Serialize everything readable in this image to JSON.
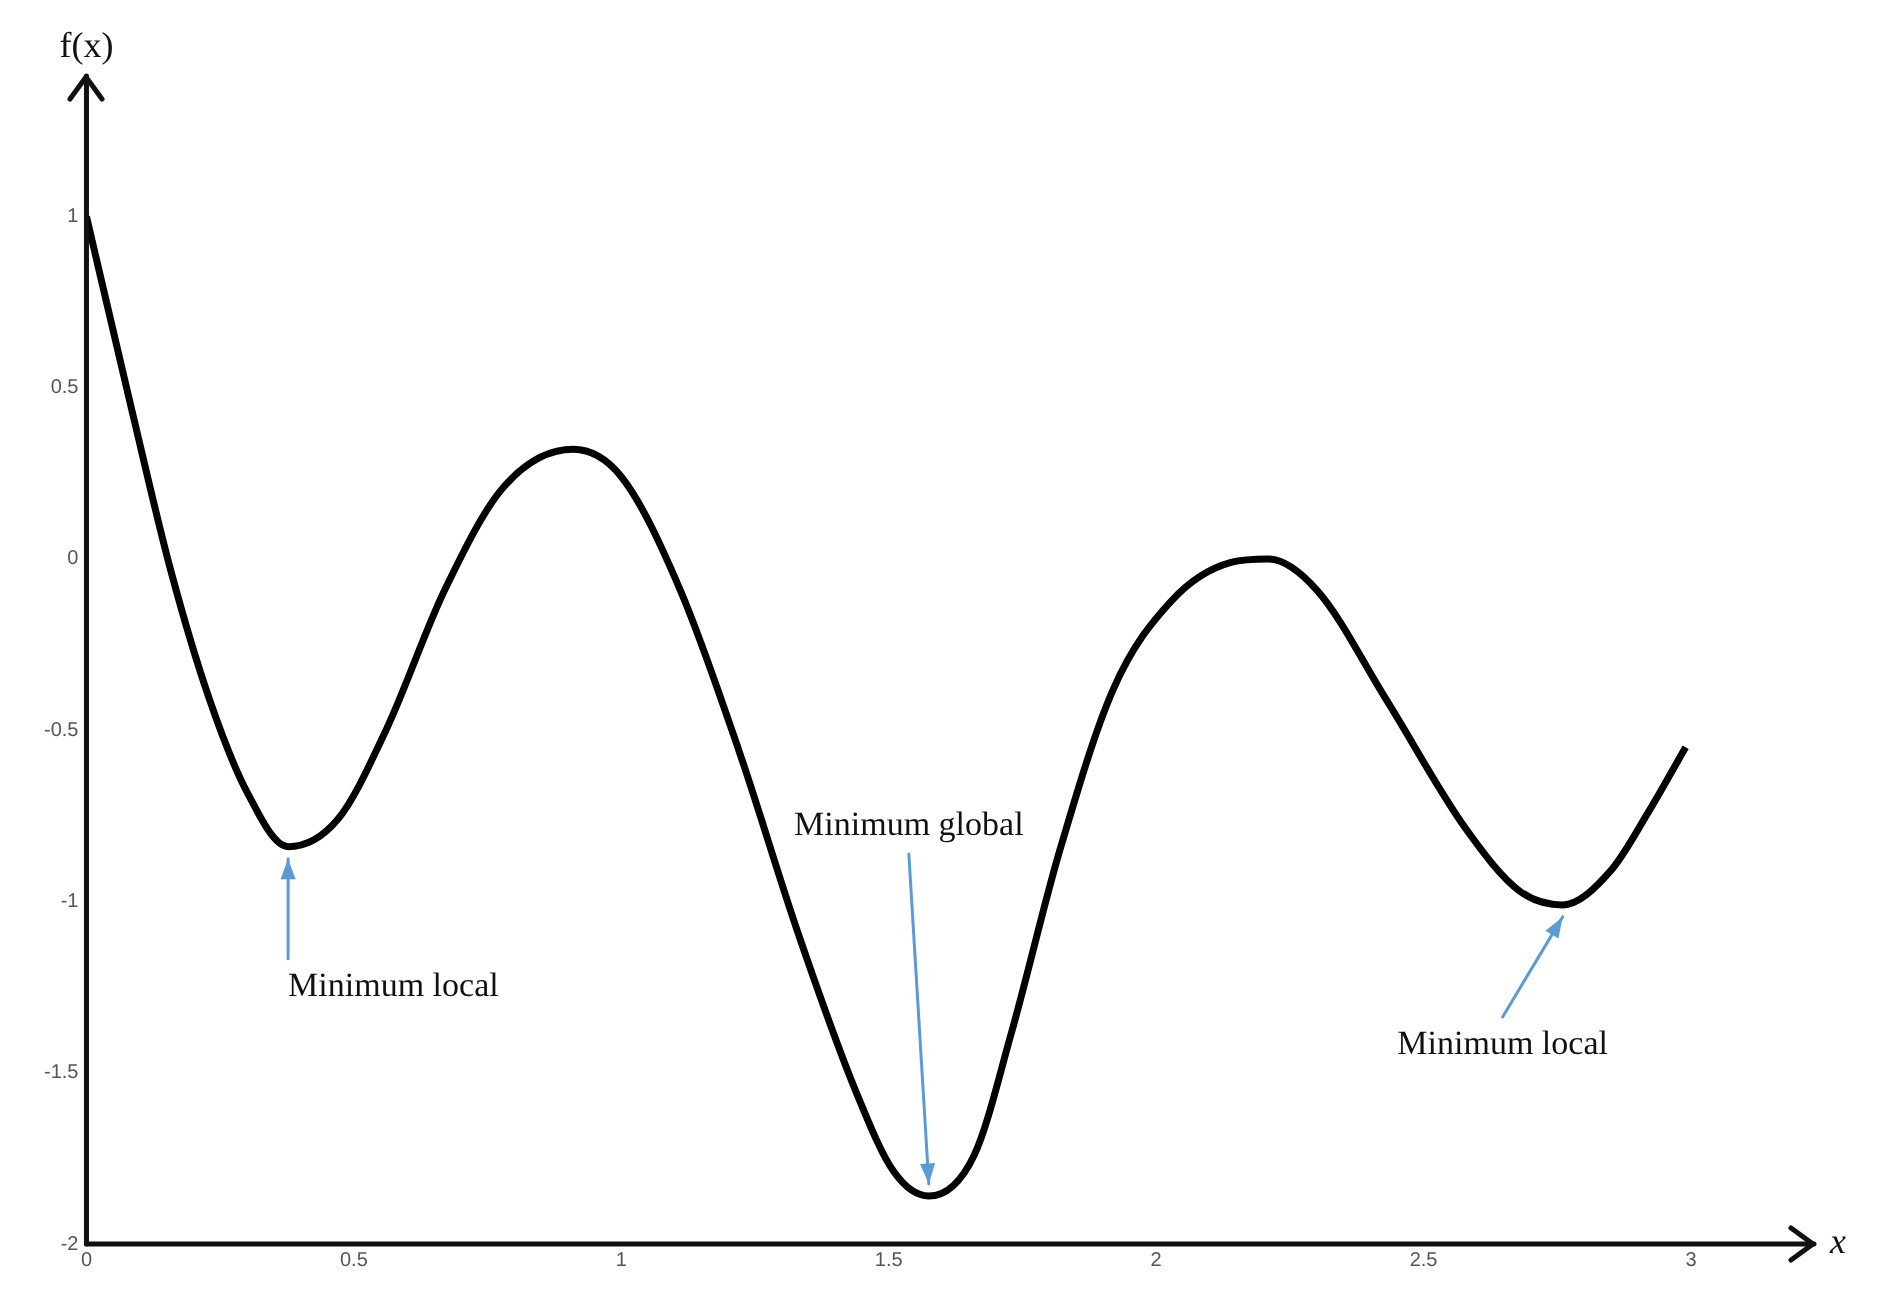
{
  "chart_data": {
    "type": "line",
    "xlabel": "x",
    "ylabel": "f(x)",
    "x": [
      0,
      0.084,
      0.157,
      0.23,
      0.3,
      0.377,
      0.47,
      0.56,
      0.67,
      0.78,
      0.91,
      1.0,
      1.11,
      1.22,
      1.33,
      1.44,
      1.51,
      1.575,
      1.66,
      1.73,
      1.82,
      1.92,
      2.03,
      2.14,
      2.21,
      2.3,
      2.43,
      2.58,
      2.68,
      2.76,
      2.85,
      2.92,
      2.99
    ],
    "series": [
      {
        "color": "#000000",
        "values": [
          1.0,
          0.44,
          -0.03,
          -0.41,
          -0.68,
          -0.84,
          -0.76,
          -0.5,
          -0.09,
          0.21,
          0.32,
          0.24,
          -0.09,
          -0.56,
          -1.09,
          -1.56,
          -1.79,
          -1.86,
          -1.74,
          -1.38,
          -0.85,
          -0.38,
          -0.12,
          -0.01,
          0.0,
          -0.09,
          -0.41,
          -0.79,
          -0.97,
          -1.01,
          -0.91,
          -0.74,
          -0.55
        ]
      }
    ],
    "xlim": [
      0,
      3.23
    ],
    "ylim": [
      -2,
      1.41
    ],
    "xticks": [
      0,
      0.5,
      1,
      1.5,
      2,
      2.5,
      3
    ],
    "yticks": [
      -2,
      -1.5,
      -1,
      -0.5,
      0,
      0.5,
      1
    ],
    "annotations": [
      {
        "text": "Minimum local",
        "x": 0.377,
        "y": -0.84
      },
      {
        "text": "Minimum global",
        "x": 1.575,
        "y": -1.86
      },
      {
        "text": "Minimum local",
        "x": 2.76,
        "y": -1.01
      }
    ],
    "grid": false,
    "legend": false,
    "marker": "none",
    "line_style": "solid"
  }
}
